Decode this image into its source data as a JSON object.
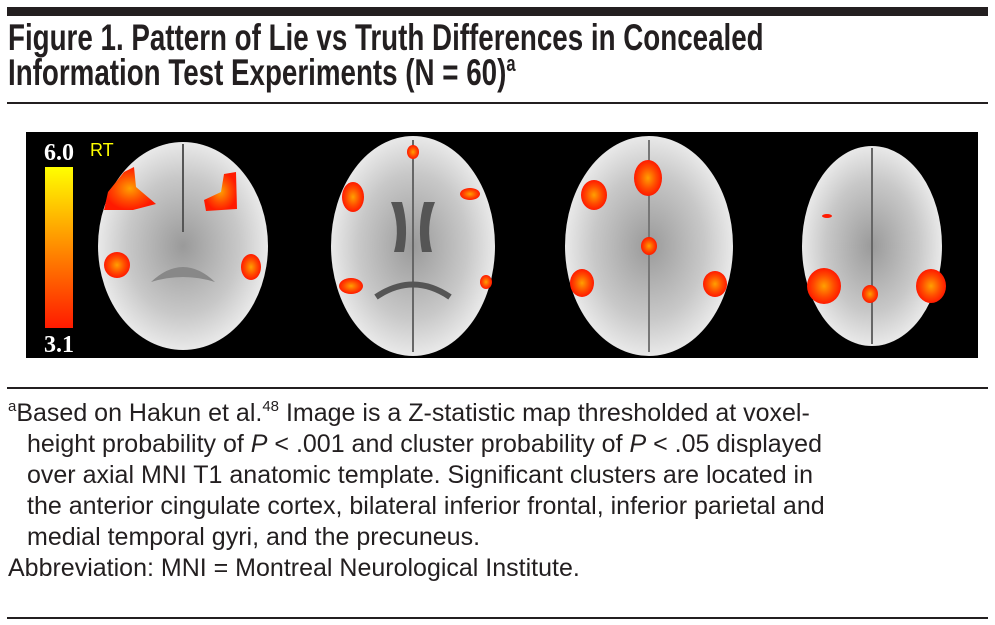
{
  "figure": {
    "title_line1": "Figure 1. Pattern of Lie vs Truth Differences in Concealed",
    "title_line2": "Information Test Experiments (N = 60)",
    "title_sup": "a"
  },
  "image": {
    "colorbar_max": "6.0",
    "colorbar_min": "3.1",
    "orientation_label": "RT",
    "colors": {
      "background": "#000000",
      "low": "#ff1a00",
      "high": "#ffff00",
      "orientation_label": "#ffff00"
    }
  },
  "footnote": {
    "marker": "a",
    "line1_a": "Based on Hakun et al.",
    "ref": "48",
    "line1_b": " Image is a Z-statistic map thresholded at voxel-",
    "line2_a": "height probability of ",
    "p": "P",
    "line2_b": " < .001 and cluster probability of ",
    "line2_c": " < .05 displayed",
    "line3": "over axial MNI T1 anatomic template. Significant clusters are located in",
    "line4": "the anterior cingulate cortex, bilateral inferior frontal, inferior parietal and",
    "line5": "medial temporal gyri, and the precuneus.",
    "abbreviation": "Abbreviation: MNI = Montreal Neurological Institute."
  }
}
